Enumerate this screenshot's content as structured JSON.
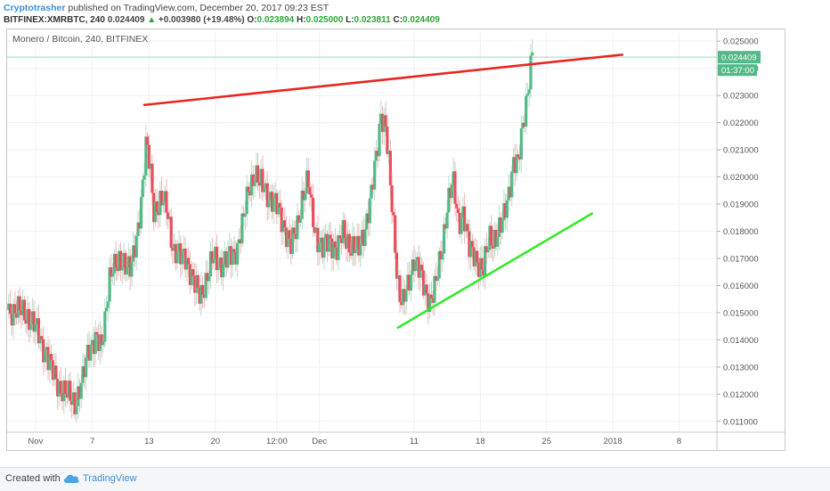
{
  "header": {
    "author": "Cryptotrasher",
    "published": " published on TradingView.com, December 20, 2017 09:23 EST",
    "symbol": "BITFINEX:XMRBTC, 240",
    "last": "0.024409",
    "arrow": "▲",
    "change": "+0.003980 (+19.48%)",
    "o_label": "O:",
    "o_value": "0.023894",
    "h_label": "H:",
    "h_value": "0.025000",
    "l_label": "L:",
    "l_value": "0.023811",
    "c_label": "C:",
    "c_value": "0.024409"
  },
  "footer": {
    "created": "Created with",
    "brand": "TradingView"
  },
  "colors": {
    "up": "#53b987",
    "down": "#eb4d5c",
    "resistance": "#e8251f",
    "support": "#36e92b",
    "price_label_bg": "#53b987",
    "grid": "#f0f0f0",
    "axis_text": "#555555"
  },
  "chart_data": {
    "type": "candlestick",
    "title": "Monero / Bitcoin, 240, BITFINEX",
    "y_ticks": [
      "0.025000",
      "0.024000",
      "0.023000",
      "0.022000",
      "0.021000",
      "0.020000",
      "0.019000",
      "0.018000",
      "0.017000",
      "0.016000",
      "0.015000",
      "0.014000",
      "0.013000",
      "0.012000",
      "0.011000"
    ],
    "ylim": [
      0.0106,
      0.0253
    ],
    "x_ticks": [
      {
        "label": "Nov",
        "t": 0
      },
      {
        "label": "7",
        "t": 6
      },
      {
        "label": "13",
        "t": 12
      },
      {
        "label": "20",
        "t": 19
      },
      {
        "label": "12:00",
        "t": 25.5
      },
      {
        "label": "Dec",
        "t": 30
      },
      {
        "label": "11",
        "t": 40
      },
      {
        "label": "18",
        "t": 47
      },
      {
        "label": "25",
        "t": 54
      },
      {
        "label": "2018",
        "t": 61
      },
      {
        "label": "8",
        "t": 68
      }
    ],
    "xlim": [
      -3,
      72
    ],
    "last_price_label": "0.024409",
    "countdown_label": "01:37:00",
    "last_price": 0.024409,
    "price_path": [
      [
        -3.0,
        0.0151
      ],
      [
        -1.0,
        0.015
      ],
      [
        0.5,
        0.0141
      ],
      [
        1.8,
        0.0128
      ],
      [
        2.5,
        0.0123
      ],
      [
        3.2,
        0.012
      ],
      [
        4.2,
        0.0117
      ],
      [
        5.0,
        0.0125
      ],
      [
        5.6,
        0.0137
      ],
      [
        6.3,
        0.0141
      ],
      [
        7.0,
        0.0136
      ],
      [
        7.8,
        0.0164
      ],
      [
        8.6,
        0.0167
      ],
      [
        9.3,
        0.017
      ],
      [
        10.1,
        0.0165
      ],
      [
        10.7,
        0.0178
      ],
      [
        11.2,
        0.0193
      ],
      [
        11.7,
        0.0212
      ],
      [
        12.1,
        0.0203
      ],
      [
        12.5,
        0.0188
      ],
      [
        13.1,
        0.0191
      ],
      [
        13.9,
        0.0188
      ],
      [
        14.6,
        0.0173
      ],
      [
        15.3,
        0.017
      ],
      [
        15.9,
        0.0171
      ],
      [
        16.8,
        0.016
      ],
      [
        17.4,
        0.0156
      ],
      [
        18.1,
        0.0163
      ],
      [
        18.8,
        0.017
      ],
      [
        19.6,
        0.0168
      ],
      [
        20.5,
        0.017
      ],
      [
        21.4,
        0.0175
      ],
      [
        22.0,
        0.0185
      ],
      [
        22.6,
        0.0197
      ],
      [
        23.2,
        0.0201
      ],
      [
        24.0,
        0.0196
      ],
      [
        24.7,
        0.0193
      ],
      [
        25.6,
        0.0188
      ],
      [
        26.3,
        0.0182
      ],
      [
        27.0,
        0.0174
      ],
      [
        27.6,
        0.0181
      ],
      [
        28.2,
        0.0193
      ],
      [
        28.8,
        0.0198
      ],
      [
        29.5,
        0.0181
      ],
      [
        30.3,
        0.0173
      ],
      [
        31.1,
        0.0177
      ],
      [
        31.9,
        0.0173
      ],
      [
        32.5,
        0.0179
      ],
      [
        33.3,
        0.0175
      ],
      [
        34.1,
        0.0172
      ],
      [
        34.9,
        0.0183
      ],
      [
        35.5,
        0.0193
      ],
      [
        36.1,
        0.021
      ],
      [
        36.5,
        0.0224
      ],
      [
        37.0,
        0.0218
      ],
      [
        37.5,
        0.0196
      ],
      [
        37.9,
        0.018
      ],
      [
        38.3,
        0.016
      ],
      [
        38.8,
        0.0153
      ],
      [
        39.4,
        0.016
      ],
      [
        40.0,
        0.0171
      ],
      [
        40.6,
        0.0165
      ],
      [
        41.1,
        0.0158
      ],
      [
        41.7,
        0.0155
      ],
      [
        42.3,
        0.016
      ],
      [
        42.9,
        0.0172
      ],
      [
        43.5,
        0.019
      ],
      [
        44.1,
        0.0198
      ],
      [
        44.7,
        0.0183
      ],
      [
        45.2,
        0.0188
      ],
      [
        45.8,
        0.0173
      ],
      [
        46.5,
        0.0171
      ],
      [
        47.3,
        0.0165
      ],
      [
        48.0,
        0.0178
      ],
      [
        48.7,
        0.0178
      ],
      [
        49.3,
        0.0182
      ],
      [
        49.9,
        0.0193
      ],
      [
        50.5,
        0.0205
      ],
      [
        51.0,
        0.0204
      ],
      [
        51.5,
        0.022
      ],
      [
        52.0,
        0.0232
      ],
      [
        52.5,
        0.0244
      ],
      [
        52.6,
        0.02441
      ]
    ],
    "trendlines": [
      {
        "name": "resistance",
        "from": [
          11.5,
          0.02265
        ],
        "to": [
          62.0,
          0.0245
        ]
      },
      {
        "name": "support",
        "from": [
          38.3,
          0.01445
        ],
        "to": [
          58.8,
          0.01865
        ]
      }
    ]
  }
}
